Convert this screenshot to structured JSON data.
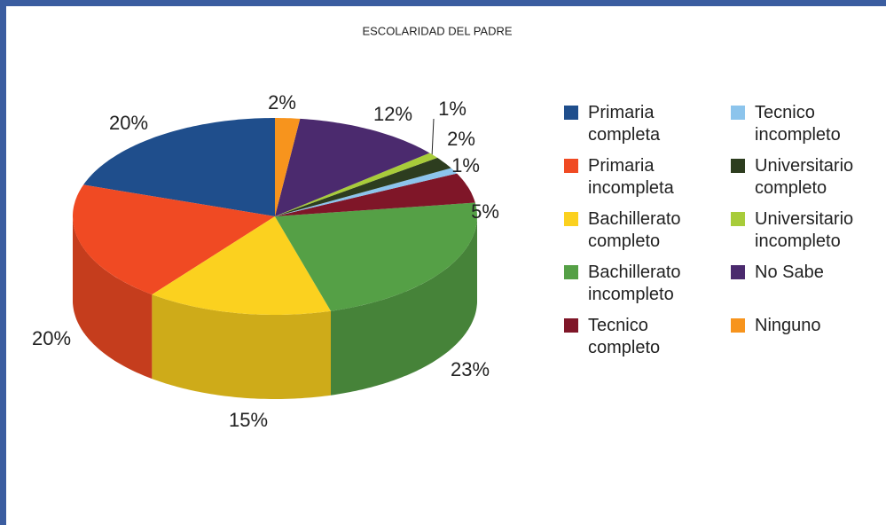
{
  "chart_data": {
    "type": "pie3d",
    "title": "ESCOLARIDAD DEL PADRE",
    "categories": [
      "Primaria completa",
      "Primaria incompleta",
      "Bachillerato completo",
      "Bachillerato incompleto",
      "Tecnico completo",
      "Tecnico incompleto",
      "Universitario completo",
      "Universitario incompleto",
      "No Sabe",
      "Ninguno"
    ],
    "values": [
      20,
      20,
      15,
      23,
      5,
      1,
      2,
      1,
      12,
      2
    ],
    "value_labels": [
      "20%",
      "20%",
      "15%",
      "23%",
      "5%",
      "1%",
      "2%",
      "1%",
      "12%",
      "2%"
    ],
    "colors": [
      "#1f4e8c",
      "#f04a23",
      "#fbd11f",
      "#55a046",
      "#7f1628",
      "#8cc4ec",
      "#2d3d1f",
      "#a8cc3a",
      "#4b2a6e",
      "#f7941d"
    ]
  }
}
